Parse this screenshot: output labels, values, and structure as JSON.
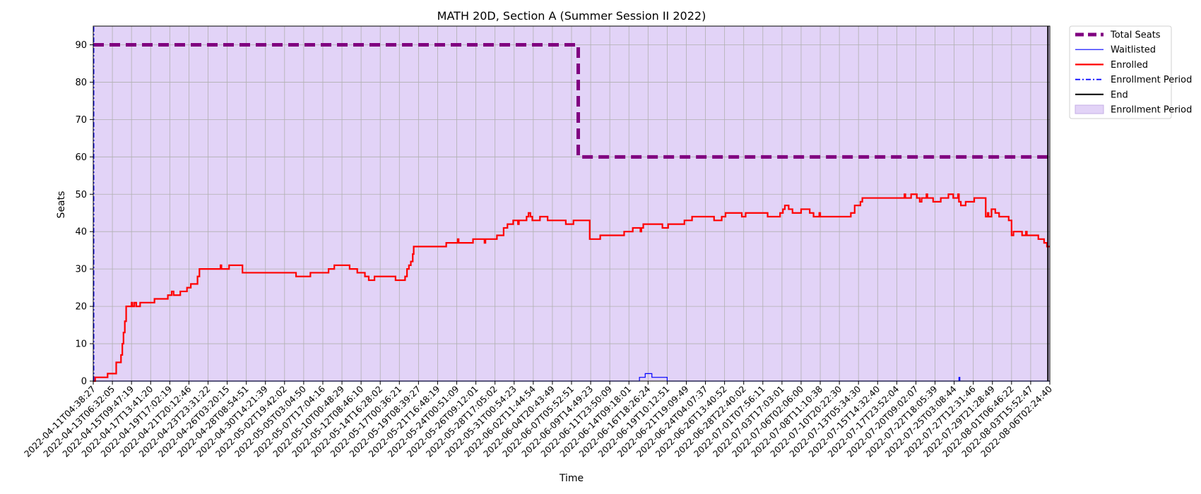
{
  "chart_data": {
    "type": "line",
    "title": "MATH 20D, Section A (Summer Session II 2022)",
    "xlabel": "Time",
    "ylabel": "Seats",
    "ylim": [
      0,
      95
    ],
    "yticks": [
      0,
      10,
      20,
      30,
      40,
      50,
      60,
      70,
      80,
      90
    ],
    "grid": true,
    "legend_placement": "outside-top-right",
    "x_start": "2022-04-11T04:38:27",
    "x_end": "2022-08-06T02:24:40",
    "xticks": [
      "2022-04-11T04:38:27",
      "2022-04-13T06:32:05",
      "2022-04-15T09:47:19",
      "2022-04-17T13:41:20",
      "2022-04-19T17:02:19",
      "2022-04-21T20:12:46",
      "2022-04-23T23:31:22",
      "2022-04-26T03:20:15",
      "2022-04-28T08:54:51",
      "2022-04-30T14:21:39",
      "2022-05-02T19:42:02",
      "2022-05-05T03:04:50",
      "2022-05-07T17:04:16",
      "2022-05-10T00:48:29",
      "2022-05-12T08:46:10",
      "2022-05-14T16:28:02",
      "2022-05-17T00:36:21",
      "2022-05-19T08:39:27",
      "2022-05-21T16:48:19",
      "2022-05-24T00:51:09",
      "2022-05-26T09:12:01",
      "2022-05-28T17:05:02",
      "2022-05-31T00:54:23",
      "2022-06-02T11:44:54",
      "2022-06-04T20:43:49",
      "2022-06-07T05:52:51",
      "2022-06-09T14:49:23",
      "2022-06-11T23:50:09",
      "2022-06-14T09:18:01",
      "2022-06-16T18:26:24",
      "2022-06-19T10:12:51",
      "2022-06-21T19:09:49",
      "2022-06-24T04:07:37",
      "2022-06-26T13:40:52",
      "2022-06-28T22:40:02",
      "2022-07-01T07:56:11",
      "2022-07-03T17:03:01",
      "2022-07-06T02:06:00",
      "2022-07-08T11:10:38",
      "2022-07-10T20:22:30",
      "2022-07-13T05:34:30",
      "2022-07-15T14:32:40",
      "2022-07-17T23:52:04",
      "2022-07-20T09:02:07",
      "2022-07-22T18:05:39",
      "2022-07-25T03:08:44",
      "2022-07-27T12:31:46",
      "2022-07-29T21:28:49",
      "2022-08-01T06:46:22",
      "2022-08-03T15:52:47",
      "2022-08-06T02:24:40"
    ],
    "series": [
      {
        "name": "Total Seats",
        "color": "#800080",
        "style": "dashed-thick",
        "points": [
          [
            0,
            90
          ],
          [
            25.35,
            90
          ],
          [
            25.35,
            60
          ],
          [
            50.0,
            60
          ]
        ]
      },
      {
        "name": "Waitlisted",
        "color": "#0000ff",
        "style": "step-thin",
        "points": [
          [
            0,
            0
          ],
          [
            28.55,
            0
          ],
          [
            28.55,
            1
          ],
          [
            28.85,
            1
          ],
          [
            28.85,
            2
          ],
          [
            29.2,
            2
          ],
          [
            29.2,
            1
          ],
          [
            30.0,
            1
          ],
          [
            30.0,
            0
          ],
          [
            45.25,
            0
          ],
          [
            45.25,
            1
          ],
          [
            45.3,
            1
          ],
          [
            45.3,
            0
          ],
          [
            50.0,
            0
          ]
        ]
      },
      {
        "name": "Enrolled",
        "color": "#ff0000",
        "style": "step",
        "points": [
          [
            0,
            0
          ],
          [
            0.1,
            0
          ],
          [
            0.1,
            1
          ],
          [
            0.75,
            1
          ],
          [
            0.75,
            2
          ],
          [
            1.2,
            2
          ],
          [
            1.2,
            5
          ],
          [
            1.45,
            5
          ],
          [
            1.45,
            7
          ],
          [
            1.52,
            7
          ],
          [
            1.52,
            10
          ],
          [
            1.58,
            10
          ],
          [
            1.58,
            13
          ],
          [
            1.65,
            13
          ],
          [
            1.65,
            16
          ],
          [
            1.72,
            16
          ],
          [
            1.72,
            20
          ],
          [
            2.0,
            20
          ],
          [
            2.0,
            21
          ],
          [
            2.05,
            21
          ],
          [
            2.05,
            20
          ],
          [
            2.15,
            20
          ],
          [
            2.15,
            21
          ],
          [
            2.25,
            21
          ],
          [
            2.25,
            20
          ],
          [
            2.45,
            20
          ],
          [
            2.45,
            21
          ],
          [
            3.2,
            21
          ],
          [
            3.2,
            22
          ],
          [
            3.9,
            22
          ],
          [
            3.9,
            23
          ],
          [
            4.1,
            23
          ],
          [
            4.1,
            24
          ],
          [
            4.2,
            24
          ],
          [
            4.2,
            23
          ],
          [
            4.55,
            23
          ],
          [
            4.55,
            24
          ],
          [
            4.9,
            24
          ],
          [
            4.9,
            25
          ],
          [
            5.1,
            25
          ],
          [
            5.1,
            26
          ],
          [
            5.45,
            26
          ],
          [
            5.45,
            28
          ],
          [
            5.55,
            28
          ],
          [
            5.55,
            30
          ],
          [
            6.65,
            30
          ],
          [
            6.65,
            31
          ],
          [
            6.7,
            31
          ],
          [
            6.7,
            30
          ],
          [
            7.1,
            30
          ],
          [
            7.1,
            31
          ],
          [
            7.8,
            31
          ],
          [
            7.8,
            29
          ],
          [
            10.6,
            29
          ],
          [
            10.6,
            28
          ],
          [
            11.35,
            28
          ],
          [
            11.35,
            29
          ],
          [
            12.3,
            29
          ],
          [
            12.3,
            30
          ],
          [
            12.6,
            30
          ],
          [
            12.6,
            31
          ],
          [
            13.4,
            31
          ],
          [
            13.4,
            30
          ],
          [
            13.8,
            30
          ],
          [
            13.8,
            29
          ],
          [
            14.2,
            29
          ],
          [
            14.2,
            28
          ],
          [
            14.4,
            28
          ],
          [
            14.4,
            27
          ],
          [
            14.7,
            27
          ],
          [
            14.7,
            28
          ],
          [
            15.8,
            28
          ],
          [
            15.8,
            27
          ],
          [
            16.3,
            27
          ],
          [
            16.3,
            28
          ],
          [
            16.4,
            28
          ],
          [
            16.4,
            30
          ],
          [
            16.5,
            30
          ],
          [
            16.5,
            31
          ],
          [
            16.6,
            31
          ],
          [
            16.6,
            32
          ],
          [
            16.7,
            32
          ],
          [
            16.7,
            34
          ],
          [
            16.75,
            34
          ],
          [
            16.75,
            36
          ],
          [
            18.45,
            36
          ],
          [
            18.45,
            37
          ],
          [
            19.05,
            37
          ],
          [
            19.05,
            38
          ],
          [
            19.1,
            38
          ],
          [
            19.1,
            37
          ],
          [
            19.85,
            37
          ],
          [
            19.85,
            38
          ],
          [
            20.45,
            38
          ],
          [
            20.45,
            37
          ],
          [
            20.5,
            37
          ],
          [
            20.5,
            38
          ],
          [
            21.1,
            38
          ],
          [
            21.1,
            39
          ],
          [
            21.45,
            39
          ],
          [
            21.45,
            41
          ],
          [
            21.65,
            41
          ],
          [
            21.65,
            42
          ],
          [
            21.95,
            42
          ],
          [
            21.95,
            43
          ],
          [
            22.2,
            43
          ],
          [
            22.2,
            42
          ],
          [
            22.25,
            42
          ],
          [
            22.25,
            43
          ],
          [
            22.65,
            43
          ],
          [
            22.65,
            44
          ],
          [
            22.75,
            44
          ],
          [
            22.75,
            45
          ],
          [
            22.85,
            45
          ],
          [
            22.85,
            44
          ],
          [
            22.95,
            44
          ],
          [
            22.95,
            43
          ],
          [
            23.35,
            43
          ],
          [
            23.35,
            44
          ],
          [
            23.75,
            44
          ],
          [
            23.75,
            43
          ],
          [
            24.7,
            43
          ],
          [
            24.7,
            42
          ],
          [
            25.1,
            42
          ],
          [
            25.1,
            43
          ],
          [
            25.95,
            43
          ],
          [
            25.95,
            38
          ],
          [
            26.5,
            38
          ],
          [
            26.5,
            39
          ],
          [
            27.75,
            39
          ],
          [
            27.75,
            40
          ],
          [
            28.2,
            40
          ],
          [
            28.2,
            41
          ],
          [
            28.6,
            41
          ],
          [
            28.6,
            40
          ],
          [
            28.65,
            40
          ],
          [
            28.65,
            41
          ],
          [
            28.75,
            41
          ],
          [
            28.75,
            42
          ],
          [
            29.75,
            42
          ],
          [
            29.75,
            41
          ],
          [
            30.05,
            41
          ],
          [
            30.05,
            42
          ],
          [
            30.9,
            42
          ],
          [
            30.9,
            43
          ],
          [
            31.3,
            43
          ],
          [
            31.3,
            44
          ],
          [
            32.45,
            44
          ],
          [
            32.45,
            43
          ],
          [
            32.85,
            43
          ],
          [
            32.85,
            44
          ],
          [
            33.05,
            44
          ],
          [
            33.05,
            45
          ],
          [
            33.9,
            45
          ],
          [
            33.9,
            44
          ],
          [
            34.1,
            44
          ],
          [
            34.1,
            45
          ],
          [
            35.25,
            45
          ],
          [
            35.25,
            44
          ],
          [
            35.9,
            44
          ],
          [
            35.9,
            45
          ],
          [
            36.05,
            45
          ],
          [
            36.05,
            46
          ],
          [
            36.15,
            46
          ],
          [
            36.15,
            47
          ],
          [
            36.35,
            47
          ],
          [
            36.35,
            46
          ],
          [
            36.55,
            46
          ],
          [
            36.55,
            45
          ],
          [
            37.0,
            45
          ],
          [
            37.0,
            46
          ],
          [
            37.45,
            46
          ],
          [
            37.45,
            45
          ],
          [
            37.65,
            45
          ],
          [
            37.65,
            44
          ],
          [
            37.95,
            44
          ],
          [
            37.95,
            45
          ],
          [
            38.0,
            45
          ],
          [
            38.0,
            44
          ],
          [
            39.6,
            44
          ],
          [
            39.6,
            45
          ],
          [
            39.8,
            45
          ],
          [
            39.8,
            47
          ],
          [
            40.1,
            47
          ],
          [
            40.1,
            48
          ],
          [
            40.2,
            48
          ],
          [
            40.2,
            49
          ],
          [
            42.4,
            49
          ],
          [
            42.4,
            50
          ],
          [
            42.45,
            50
          ],
          [
            42.45,
            49
          ],
          [
            42.75,
            49
          ],
          [
            42.75,
            50
          ],
          [
            43.05,
            50
          ],
          [
            43.05,
            49
          ],
          [
            43.2,
            49
          ],
          [
            43.2,
            48
          ],
          [
            43.3,
            48
          ],
          [
            43.3,
            49
          ],
          [
            43.55,
            49
          ],
          [
            43.55,
            50
          ],
          [
            43.6,
            50
          ],
          [
            43.6,
            49
          ],
          [
            43.9,
            49
          ],
          [
            43.9,
            48
          ],
          [
            44.3,
            48
          ],
          [
            44.3,
            49
          ],
          [
            44.7,
            49
          ],
          [
            44.7,
            50
          ],
          [
            44.95,
            50
          ],
          [
            44.95,
            49
          ],
          [
            45.2,
            49
          ],
          [
            45.2,
            50
          ],
          [
            45.25,
            50
          ],
          [
            45.25,
            48
          ],
          [
            45.35,
            48
          ],
          [
            45.35,
            47
          ],
          [
            45.6,
            47
          ],
          [
            45.6,
            48
          ],
          [
            46.05,
            48
          ],
          [
            46.05,
            49
          ],
          [
            46.65,
            49
          ],
          [
            46.65,
            44
          ],
          [
            46.75,
            44
          ],
          [
            46.75,
            45
          ],
          [
            46.8,
            45
          ],
          [
            46.8,
            44
          ],
          [
            46.95,
            44
          ],
          [
            46.95,
            46
          ],
          [
            47.15,
            46
          ],
          [
            47.15,
            45
          ],
          [
            47.35,
            45
          ],
          [
            47.35,
            44
          ],
          [
            47.85,
            44
          ],
          [
            47.85,
            43
          ],
          [
            48.0,
            43
          ],
          [
            48.0,
            39
          ],
          [
            48.1,
            39
          ],
          [
            48.1,
            40
          ],
          [
            48.55,
            40
          ],
          [
            48.55,
            39
          ],
          [
            48.75,
            39
          ],
          [
            48.75,
            40
          ],
          [
            48.8,
            40
          ],
          [
            48.8,
            39
          ],
          [
            49.4,
            39
          ],
          [
            49.4,
            38
          ],
          [
            49.7,
            38
          ],
          [
            49.7,
            37
          ],
          [
            49.85,
            37
          ],
          [
            49.85,
            36
          ],
          [
            50.0,
            36
          ]
        ]
      },
      {
        "name": "Enrollment Period",
        "color": "#0000ff",
        "style": "dash-dot",
        "points": [
          [
            0.02,
            0
          ],
          [
            0.02,
            95
          ]
        ]
      },
      {
        "name": "End",
        "color": "#000000",
        "style": "vline",
        "points": [
          [
            49.9,
            0
          ],
          [
            49.9,
            95
          ]
        ]
      },
      {
        "name": "Enrollment Period",
        "color": "#e2d3f7",
        "style": "span",
        "points": [
          [
            0,
            0
          ],
          [
            50.0,
            95
          ]
        ]
      }
    ]
  }
}
